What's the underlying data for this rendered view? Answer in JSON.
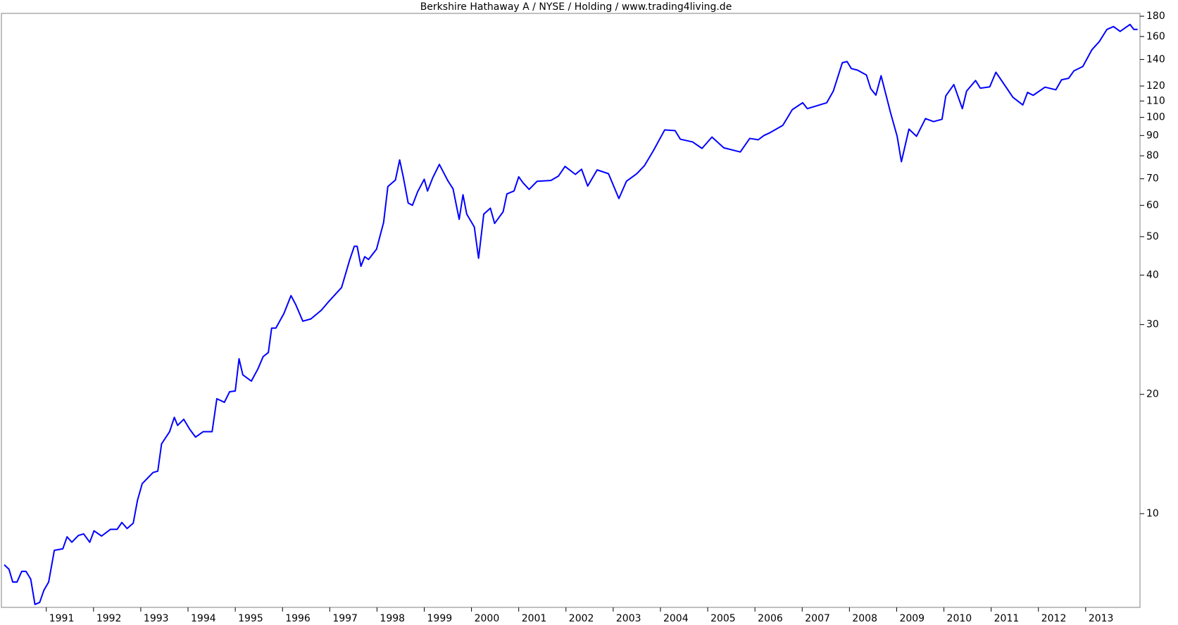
{
  "chart_data": {
    "type": "line",
    "title": "Berkshire Hathaway A / NYSE / Holding / www.trading4living.de",
    "color": "#0000ff",
    "log_y": true,
    "grid": false,
    "xlim": [
      1990.05,
      2014.15
    ],
    "ylim": [
      5.8,
      183
    ],
    "xticks": [
      1991,
      1992,
      1993,
      1994,
      1995,
      1996,
      1997,
      1998,
      1999,
      2000,
      2001,
      2002,
      2003,
      2004,
      2005,
      2006,
      2007,
      2008,
      2009,
      2010,
      2011,
      2012,
      2013
    ],
    "yticks": [
      10,
      20,
      30,
      40,
      50,
      60,
      70,
      80,
      90,
      100,
      110,
      120,
      140,
      160,
      180
    ],
    "x": [
      1990.11,
      1990.21,
      1990.29,
      1990.38,
      1990.48,
      1990.57,
      1990.67,
      1990.76,
      1990.86,
      1990.95,
      1991.05,
      1991.17,
      1991.35,
      1991.44,
      1991.54,
      1991.68,
      1991.79,
      1991.92,
      1992.01,
      1992.17,
      1992.36,
      1992.5,
      1992.6,
      1992.71,
      1992.84,
      1992.93,
      1993.03,
      1993.26,
      1993.36,
      1993.44,
      1993.61,
      1993.71,
      1993.78,
      1993.91,
      1994.04,
      1994.16,
      1994.32,
      1994.51,
      1994.61,
      1994.77,
      1994.88,
      1995.0,
      1995.08,
      1995.16,
      1995.34,
      1995.48,
      1995.59,
      1995.7,
      1995.77,
      1995.86,
      1996.03,
      1996.18,
      1996.28,
      1996.43,
      1996.6,
      1996.82,
      1996.96,
      1997.25,
      1997.42,
      1997.52,
      1997.58,
      1997.66,
      1997.74,
      1997.82,
      1997.99,
      1998.14,
      1998.23,
      1998.39,
      1998.48,
      1998.56,
      1998.66,
      1998.75,
      1998.86,
      1999.0,
      1999.07,
      1999.18,
      1999.32,
      1999.5,
      1999.61,
      1999.74,
      1999.82,
      1999.9,
      2000.06,
      2000.15,
      2000.26,
      2000.4,
      2000.49,
      2000.67,
      2000.75,
      2000.9,
      2001.0,
      2001.09,
      2001.22,
      2001.39,
      2001.68,
      2001.84,
      2001.98,
      2002.2,
      2002.33,
      2002.46,
      2002.66,
      2002.9,
      2003.12,
      2003.28,
      2003.5,
      2003.66,
      2003.85,
      2004.09,
      2004.31,
      2004.42,
      2004.68,
      2004.88,
      2005.09,
      2005.34,
      2005.69,
      2005.89,
      2006.07,
      2006.19,
      2006.32,
      2006.59,
      2006.79,
      2007.01,
      2007.11,
      2007.52,
      2007.66,
      2007.85,
      2007.95,
      2008.04,
      2008.17,
      2008.36,
      2008.45,
      2008.56,
      2008.67,
      2008.87,
      2009.01,
      2009.1,
      2009.26,
      2009.42,
      2009.61,
      2009.78,
      2009.96,
      2010.04,
      2010.21,
      2010.39,
      2010.48,
      2010.67,
      2010.77,
      2010.97,
      2011.1,
      2011.22,
      2011.46,
      2011.67,
      2011.77,
      2011.89,
      2012.14,
      2012.37,
      2012.49,
      2012.64,
      2012.75,
      2012.94,
      2013.13,
      2013.29,
      2013.45,
      2013.59,
      2013.73,
      2013.94,
      2014.02,
      2014.1
    ],
    "values": [
      7.43,
      7.24,
      6.72,
      6.72,
      7.15,
      7.15,
      6.84,
      5.9,
      5.97,
      6.41,
      6.72,
      8.08,
      8.15,
      8.74,
      8.47,
      8.81,
      8.89,
      8.47,
      9.05,
      8.78,
      9.13,
      9.13,
      9.5,
      9.17,
      9.46,
      10.8,
      11.9,
      12.7,
      12.8,
      15.0,
      16.1,
      17.5,
      16.7,
      17.3,
      16.3,
      15.6,
      16.1,
      16.1,
      19.5,
      19.1,
      20.3,
      20.4,
      24.6,
      22.4,
      21.6,
      23.2,
      24.9,
      25.5,
      29.4,
      29.4,
      32.0,
      35.5,
      33.7,
      30.6,
      31.0,
      32.6,
      34.1,
      37.2,
      43.6,
      47.3,
      47.3,
      42.1,
      44.5,
      43.8,
      46.5,
      54.3,
      66.9,
      69.5,
      78.1,
      70.4,
      60.8,
      60.0,
      64.9,
      69.8,
      65.2,
      70.4,
      76.1,
      69.2,
      66.0,
      55.3,
      63.8,
      57.0,
      52.9,
      44.1,
      57.0,
      59.0,
      54.0,
      57.8,
      64.1,
      65.2,
      70.8,
      68.4,
      65.8,
      69.0,
      69.3,
      71.1,
      75.2,
      71.8,
      74.0,
      67.1,
      73.7,
      72.1,
      62.4,
      69.0,
      72.1,
      75.5,
      82.4,
      93.0,
      92.6,
      88.1,
      86.7,
      83.5,
      89.2,
      83.8,
      81.8,
      88.5,
      87.8,
      90.0,
      91.5,
      95.5,
      104.6,
      108.9,
      105.2,
      108.9,
      116.6,
      137.4,
      138.3,
      132.8,
      131.6,
      127.9,
      118.2,
      113.8,
      127.4,
      102.8,
      89.6,
      77.3,
      93.4,
      89.6,
      99.3,
      97.6,
      98.9,
      113.3,
      121.0,
      105.2,
      116.5,
      123.9,
      118.5,
      119.4,
      130.0,
      123.9,
      112.4,
      107.5,
      115.6,
      113.7,
      119.2,
      117.4,
      124.4,
      125.5,
      131.0,
      134.4,
      148.0,
      155.4,
      166.7,
      169.5,
      164.8,
      171.6,
      166.7,
      166.7
    ]
  }
}
